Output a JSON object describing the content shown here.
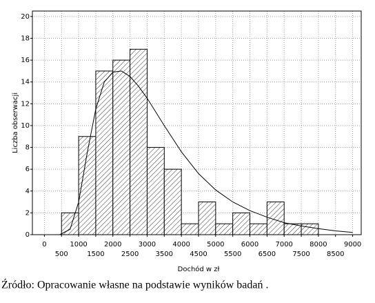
{
  "chart_data": {
    "type": "histogram",
    "x_label": "Dochód w zł",
    "y_label": "Liczba obserwacji",
    "bins": [
      500,
      1000,
      1500,
      2000,
      2500,
      3000,
      3500,
      4000,
      4500,
      5000,
      5500,
      6000,
      6500,
      7000,
      7500,
      8000
    ],
    "values": [
      2,
      9,
      15,
      16,
      17,
      8,
      6,
      1,
      3,
      1,
      2,
      1,
      3,
      1,
      1
    ],
    "curve": {
      "x": [
        450,
        750,
        1000,
        1250,
        1500,
        1750,
        2000,
        2250,
        2500,
        2750,
        3000,
        3500,
        4000,
        4500,
        5000,
        5500,
        6000,
        6500,
        7000,
        7500,
        8000,
        8500,
        9000
      ],
      "values": [
        0,
        0.5,
        3,
        7.5,
        11.5,
        14,
        14.9,
        15,
        14.5,
        13.6,
        12.5,
        10,
        7.6,
        5.6,
        4.1,
        3,
        2.2,
        1.6,
        1.1,
        0.8,
        0.55,
        0.35,
        0.2
      ]
    },
    "xlim": [
      -350,
      9250
    ],
    "ylim": [
      0,
      20.5
    ],
    "xticks": [
      0,
      500,
      1000,
      1500,
      2000,
      2500,
      3000,
      3500,
      4000,
      4500,
      5000,
      5500,
      6000,
      6500,
      7000,
      7500,
      8000,
      8500,
      9000
    ],
    "yticks": [
      0,
      2,
      4,
      6,
      8,
      10,
      12,
      14,
      16,
      18,
      20
    ],
    "grid": true,
    "caption": "Źródło: Opracowanie własne na podstawie wyników badań ."
  }
}
